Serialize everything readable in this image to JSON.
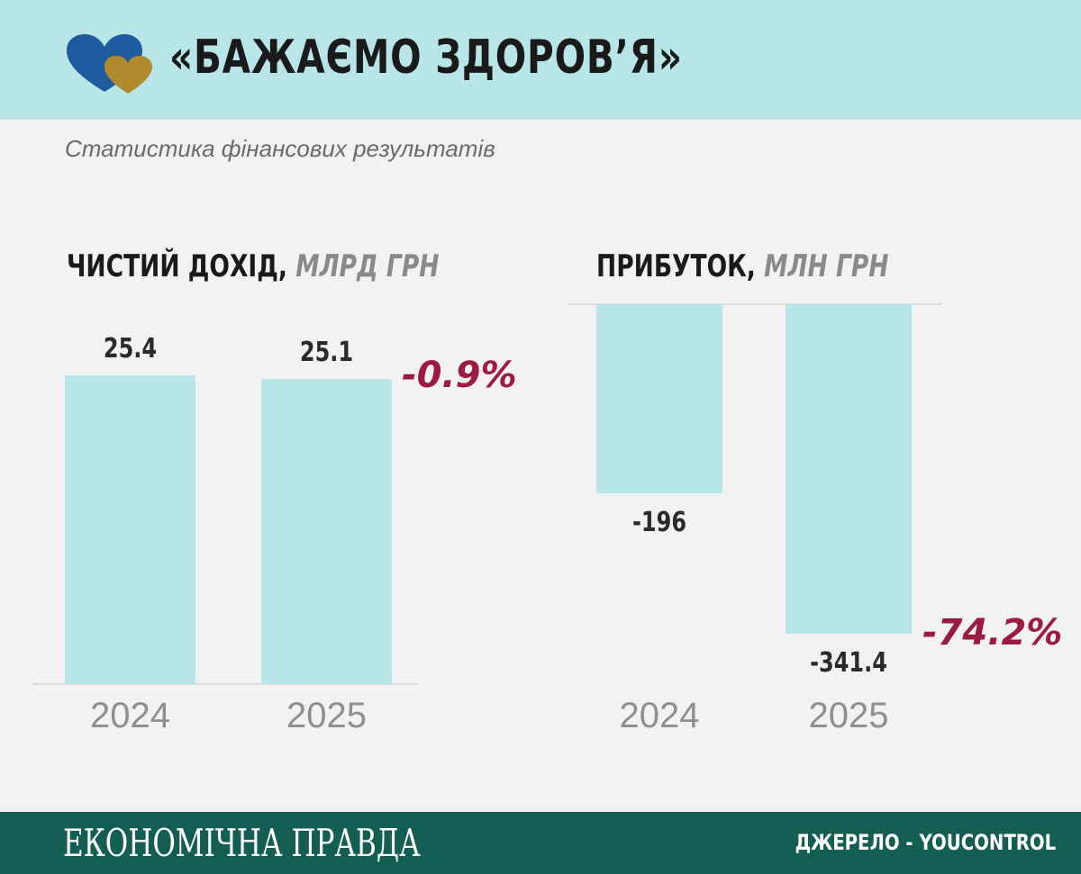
{
  "header": {
    "title": "«БАЖАЄМО ЗДОРОВ’Я»"
  },
  "subtitle": "Статистика фінансових результатів",
  "colors": {
    "header_bg": "#b8e5e8",
    "bar": "#b8e5e8",
    "change": "#9b1b42",
    "footer_bg": "#145d52",
    "logo_blue": "#1d5a9e",
    "logo_gold": "#b08a2c"
  },
  "chart_data": [
    {
      "type": "bar",
      "title": "ЧИСТИЙ ДОХІД,",
      "unit": "МЛРД ГРН",
      "categories": [
        "2024",
        "2025"
      ],
      "values": [
        25.4,
        25.1
      ],
      "value_labels": [
        "25.4",
        "25.1"
      ],
      "change_label": "-0.9%",
      "ylim": [
        0,
        25.4
      ],
      "grid": false
    },
    {
      "type": "bar",
      "title": "ПРИБУТОК,",
      "unit": "МЛН ГРН",
      "categories": [
        "2024",
        "2025"
      ],
      "values": [
        -196,
        -341.4
      ],
      "value_labels": [
        "-196",
        "-341.4"
      ],
      "change_label": "-74.2%",
      "ylim": [
        -341.4,
        0
      ],
      "grid": false
    }
  ],
  "footer": {
    "brand": "ЕКОНОМІЧНА ПРАВДА",
    "source": "ДЖЕРЕЛО - YOUCONTROL"
  }
}
